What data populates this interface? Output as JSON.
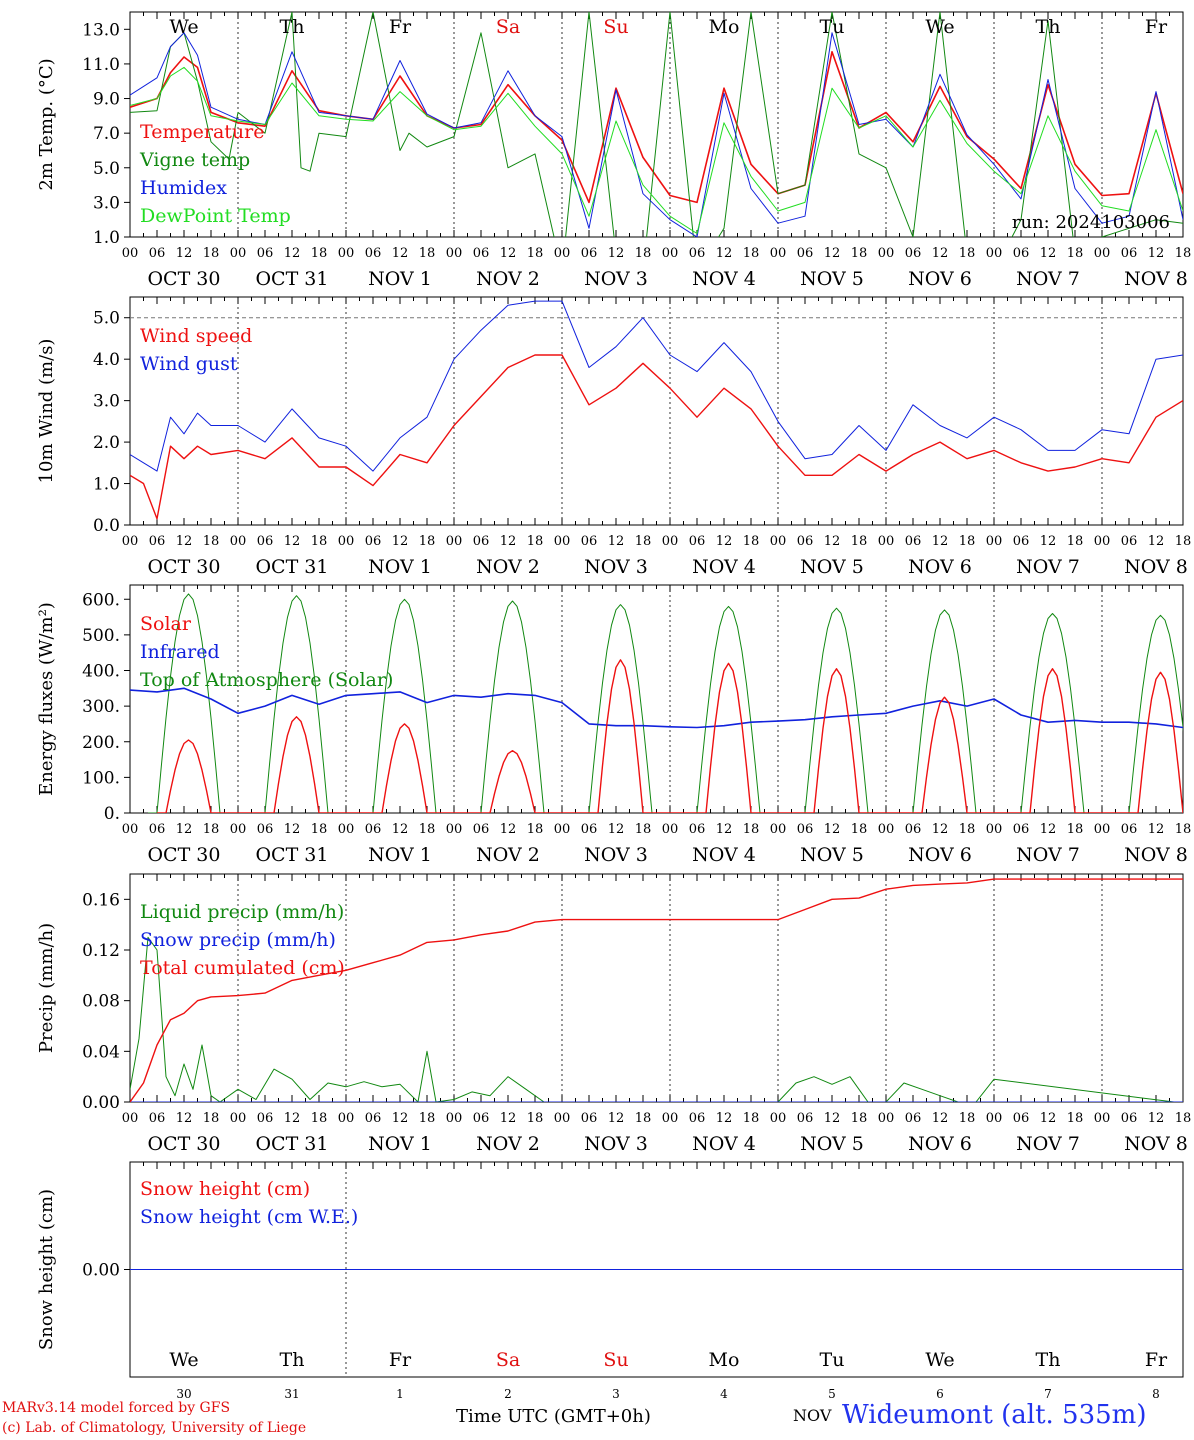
{
  "days": [
    "We",
    "Th",
    "Fr",
    "Sa",
    "Su",
    "Mo",
    "Tu",
    "We",
    "Th",
    "Fr"
  ],
  "day_colors": [
    "#000000",
    "#000000",
    "#000000",
    "#e01010",
    "#e01010",
    "#000000",
    "#000000",
    "#000000",
    "#000000",
    "#000000"
  ],
  "date_labels": [
    "OCT 30",
    "OCT 31",
    "NOV  1",
    "NOV  2",
    "NOV  3",
    "NOV  4",
    "NOV  5",
    "NOV  6",
    "NOV  7",
    "NOV  8"
  ],
  "hour_ticks": [
    "00",
    "06",
    "12",
    "18"
  ],
  "bottom_dates": [
    "30",
    "31",
    "1",
    "2",
    "3",
    "4",
    "5",
    "6",
    "7",
    "8"
  ],
  "run_label": "run: 2024103006",
  "footer": {
    "model": "MARv3.14 model forced by GFS",
    "lab": "(c) Lab. of Climatology, University of Liege",
    "time_axis": "Time UTC (GMT+0h)",
    "month": "NOV",
    "station": "Wideumont (alt. 535m)"
  },
  "chart_data": [
    {
      "type": "line",
      "ylabel": "2m Temp. (°C)",
      "ylim": [
        1.0,
        14.0
      ],
      "yticks": [
        "1.0",
        "3.0",
        "5.0",
        "7.0",
        "9.0",
        "11.0",
        "13.0"
      ],
      "ytick_values": [
        1,
        3,
        5,
        7,
        9,
        11,
        13
      ],
      "x_unit": "hours since OCT 30 00 UTC",
      "grid": "dashed vertical at day boundaries",
      "series": [
        {
          "name": "Temperature",
          "color": "#ee1111",
          "width": 1.6,
          "x": [
            0,
            6,
            9,
            12,
            15,
            18,
            24,
            30,
            36,
            42,
            48,
            54,
            60,
            66,
            72,
            78,
            84,
            90,
            96,
            102,
            108,
            114,
            120,
            126,
            132,
            138,
            144,
            150,
            156,
            162,
            168,
            174,
            180,
            186,
            192,
            198,
            204,
            210,
            216,
            222,
            228,
            234
          ],
          "y": [
            8.5,
            9.0,
            10.5,
            11.4,
            10.8,
            8.2,
            7.6,
            7.4,
            10.6,
            8.3,
            8.0,
            7.8,
            10.3,
            8.0,
            7.3,
            7.5,
            9.8,
            8.0,
            6.6,
            3.0,
            9.6,
            5.6,
            3.4,
            3.0,
            9.6,
            5.2,
            3.5,
            4.0,
            11.7,
            7.3,
            8.2,
            6.5,
            9.7,
            6.8,
            5.5,
            3.8,
            9.8,
            5.2,
            3.4,
            3.5,
            9.3,
            3.5
          ]
        },
        {
          "name": "Vigne temp",
          "color": "#118811",
          "width": 1,
          "x": [
            0,
            6,
            9,
            12,
            15,
            18,
            22,
            24,
            30,
            36,
            38,
            40,
            42,
            48,
            54,
            60,
            62,
            66,
            72,
            78,
            84,
            90,
            96,
            102,
            108,
            114,
            120,
            126,
            132,
            138,
            144,
            150,
            156,
            162,
            168,
            174,
            180,
            186,
            192,
            198,
            204,
            210,
            216,
            222,
            228,
            234
          ],
          "y": [
            8.2,
            8.3,
            12.0,
            12.8,
            10.0,
            6.5,
            5.5,
            8.2,
            7.0,
            14.0,
            5.0,
            4.8,
            7.0,
            6.8,
            14.0,
            6.0,
            7.0,
            6.2,
            6.8,
            12.8,
            5.0,
            5.8,
            -1.0,
            14.0,
            0.0,
            -1.0,
            14.0,
            -1.0,
            1.5,
            14.0,
            3.5,
            4.0,
            14.0,
            5.8,
            5.0,
            1.0,
            14.0,
            0.0,
            -1.0,
            2.0,
            13.5,
            0.0,
            1.0,
            1.5,
            2.0,
            1.8
          ]
        },
        {
          "name": "Humidex",
          "color": "#1122dd",
          "width": 1,
          "x": [
            0,
            6,
            9,
            12,
            15,
            18,
            24,
            30,
            36,
            42,
            48,
            54,
            60,
            66,
            72,
            78,
            84,
            90,
            96,
            102,
            108,
            114,
            120,
            126,
            132,
            138,
            144,
            150,
            156,
            162,
            168,
            174,
            180,
            186,
            192,
            198,
            204,
            210,
            216,
            222,
            228,
            234
          ],
          "y": [
            9.2,
            10.2,
            12.0,
            12.8,
            11.5,
            8.5,
            7.8,
            7.5,
            11.7,
            8.2,
            8.0,
            7.8,
            11.2,
            8.1,
            7.3,
            7.6,
            10.6,
            8.0,
            6.8,
            1.5,
            9.5,
            3.5,
            2.0,
            1.0,
            9.3,
            3.8,
            1.8,
            2.2,
            12.8,
            7.5,
            7.8,
            6.2,
            10.4,
            6.9,
            5.2,
            3.2,
            10.1,
            3.8,
            1.8,
            2.2,
            9.4,
            2.0
          ]
        },
        {
          "name": "DewPoint Temp",
          "color": "#22dd22",
          "width": 1,
          "x": [
            0,
            6,
            9,
            12,
            15,
            18,
            24,
            30,
            36,
            42,
            48,
            54,
            60,
            66,
            72,
            78,
            84,
            90,
            96,
            102,
            108,
            114,
            120,
            126,
            132,
            138,
            144,
            150,
            156,
            162,
            168,
            174,
            180,
            186,
            192,
            198,
            204,
            210,
            216,
            222,
            228,
            234
          ],
          "y": [
            8.6,
            9.0,
            10.3,
            10.8,
            10.0,
            8.0,
            7.7,
            7.5,
            9.9,
            8.0,
            7.8,
            7.7,
            9.4,
            8.0,
            7.2,
            7.4,
            9.3,
            7.4,
            5.8,
            2.2,
            7.7,
            4.0,
            2.2,
            1.2,
            7.6,
            4.5,
            2.5,
            3.0,
            9.6,
            7.3,
            8.0,
            6.2,
            8.9,
            6.4,
            4.8,
            3.5,
            8.0,
            4.8,
            2.8,
            2.5,
            7.2,
            2.5
          ]
        }
      ],
      "legend": [
        "Temperature",
        "Vigne temp",
        "Humidex",
        "DewPoint Temp"
      ]
    },
    {
      "type": "line",
      "ylabel": "10m Wind (m/s)",
      "ylim": [
        0.0,
        5.5
      ],
      "yticks": [
        "0.0",
        "1.0",
        "2.0",
        "3.0",
        "4.0",
        "5.0"
      ],
      "ytick_values": [
        0,
        1,
        2,
        3,
        4,
        5
      ],
      "hline": 5.0,
      "series": [
        {
          "name": "Wind speed",
          "color": "#ee1111",
          "width": 1.4,
          "x": [
            0,
            3,
            6,
            9,
            12,
            15,
            18,
            24,
            30,
            36,
            42,
            48,
            54,
            60,
            66,
            72,
            78,
            84,
            90,
            96,
            102,
            108,
            114,
            120,
            126,
            132,
            138,
            144,
            150,
            156,
            162,
            168,
            174,
            180,
            186,
            192,
            198,
            204,
            210,
            216,
            222,
            228,
            234
          ],
          "y": [
            1.2,
            1.0,
            0.15,
            1.9,
            1.6,
            1.9,
            1.7,
            1.8,
            1.6,
            2.1,
            1.4,
            1.4,
            0.95,
            1.7,
            1.5,
            2.4,
            3.1,
            3.8,
            4.1,
            4.1,
            2.9,
            3.3,
            3.9,
            3.3,
            2.6,
            3.3,
            2.8,
            1.9,
            1.2,
            1.2,
            1.7,
            1.3,
            1.7,
            2.0,
            1.6,
            1.8,
            1.5,
            1.3,
            1.4,
            1.6,
            1.5,
            2.6,
            3.0
          ]
        },
        {
          "name": "Wind gust",
          "color": "#1122dd",
          "width": 1,
          "x": [
            0,
            3,
            6,
            9,
            12,
            15,
            18,
            24,
            30,
            36,
            42,
            48,
            54,
            60,
            66,
            72,
            78,
            84,
            90,
            96,
            102,
            108,
            114,
            120,
            126,
            132,
            138,
            144,
            150,
            156,
            162,
            168,
            174,
            180,
            186,
            192,
            198,
            204,
            210,
            216,
            222,
            228,
            234
          ],
          "y": [
            1.7,
            1.5,
            1.3,
            2.6,
            2.2,
            2.7,
            2.4,
            2.4,
            2.0,
            2.8,
            2.1,
            1.9,
            1.3,
            2.1,
            2.6,
            4.0,
            4.7,
            5.3,
            5.4,
            5.4,
            3.8,
            4.3,
            5.0,
            4.1,
            3.7,
            4.4,
            3.7,
            2.5,
            1.6,
            1.7,
            2.4,
            1.8,
            2.9,
            2.4,
            2.1,
            2.6,
            2.3,
            1.8,
            1.8,
            2.3,
            2.2,
            4.0,
            4.1
          ]
        }
      ],
      "legend": [
        "Wind speed",
        "Wind gust"
      ]
    },
    {
      "type": "line",
      "ylabel": "Energy fluxes (W/m²)",
      "ylim": [
        0,
        640
      ],
      "yticks": [
        "0.",
        "100.",
        "200.",
        "300.",
        "400.",
        "500.",
        "600."
      ],
      "ytick_values": [
        0,
        100,
        200,
        300,
        400,
        500,
        600
      ],
      "daily_peak_hour": 13,
      "solar_peaks": [
        205,
        270,
        250,
        175,
        430,
        420,
        405,
        325,
        405,
        395
      ],
      "toa_peaks": [
        615,
        610,
        600,
        595,
        585,
        580,
        575,
        570,
        560,
        555
      ],
      "infrared": {
        "x": [
          0,
          6,
          12,
          18,
          24,
          30,
          36,
          42,
          48,
          54,
          60,
          66,
          72,
          78,
          84,
          90,
          96,
          102,
          108,
          114,
          120,
          126,
          132,
          138,
          144,
          150,
          156,
          162,
          168,
          174,
          180,
          186,
          192,
          198,
          204,
          210,
          216,
          222,
          228,
          234
        ],
        "y": [
          345,
          340,
          350,
          320,
          280,
          300,
          330,
          305,
          330,
          335,
          340,
          310,
          330,
          325,
          335,
          330,
          310,
          250,
          245,
          245,
          242,
          240,
          245,
          255,
          258,
          262,
          270,
          275,
          280,
          300,
          315,
          300,
          320,
          275,
          255,
          260,
          255,
          255,
          250,
          240
        ]
      },
      "series": [
        {
          "name": "Solar",
          "color": "#ee1111"
        },
        {
          "name": "Infrared",
          "color": "#1122dd"
        },
        {
          "name": "Top of Atmosphere (Solar)",
          "color": "#118811"
        }
      ],
      "legend": [
        "Solar",
        "Infrared",
        "Top of Atmosphere (Solar)"
      ]
    },
    {
      "type": "line",
      "ylabel": "Precip (mm/h)",
      "ylim": [
        0.0,
        0.18
      ],
      "yticks": [
        "0.00",
        "0.04",
        "0.08",
        "0.12",
        "0.16"
      ],
      "ytick_values": [
        0,
        0.04,
        0.08,
        0.12,
        0.16
      ],
      "series": [
        {
          "name": "Liquid precip (mm/h)",
          "color": "#118811",
          "width": 1,
          "x": [
            0,
            2,
            4,
            6,
            8,
            10,
            12,
            14,
            16,
            18,
            20,
            24,
            28,
            32,
            36,
            40,
            44,
            48,
            52,
            56,
            60,
            64,
            66,
            68,
            72,
            76,
            80,
            84,
            88,
            92,
            96,
            120,
            144,
            148,
            152,
            156,
            160,
            164,
            168,
            172,
            176,
            180,
            184,
            188,
            192,
            232,
            234
          ],
          "y": [
            0.01,
            0.05,
            0.13,
            0.12,
            0.02,
            0.005,
            0.03,
            0.01,
            0.045,
            0.005,
            0.0,
            0.01,
            0.002,
            0.026,
            0.018,
            0.002,
            0.015,
            0.012,
            0.016,
            0.012,
            0.014,
            0.0,
            0.04,
            0.0,
            0.002,
            0.008,
            0.005,
            0.02,
            0.01,
            0.0,
            0.0,
            0.0,
            0.0,
            0.015,
            0.02,
            0.014,
            0.02,
            0.0,
            0.0,
            0.015,
            0.01,
            0.005,
            0.0,
            0.0,
            0.018,
            0.0,
            0.0
          ]
        },
        {
          "name": "Snow precip (mm/h)",
          "color": "#1122dd",
          "width": 1,
          "x": [
            0,
            234
          ],
          "y": [
            0.0,
            0.0
          ]
        },
        {
          "name": "Total cumulated (cm)",
          "color": "#ee1111",
          "width": 1.4,
          "x": [
            0,
            3,
            6,
            9,
            12,
            15,
            18,
            24,
            30,
            36,
            42,
            48,
            54,
            60,
            66,
            72,
            78,
            84,
            90,
            96,
            120,
            144,
            150,
            156,
            162,
            168,
            174,
            180,
            186,
            192,
            234
          ],
          "y": [
            0.0,
            0.015,
            0.045,
            0.065,
            0.07,
            0.08,
            0.083,
            0.084,
            0.086,
            0.096,
            0.1,
            0.104,
            0.11,
            0.116,
            0.126,
            0.128,
            0.132,
            0.135,
            0.142,
            0.144,
            0.144,
            0.144,
            0.152,
            0.16,
            0.161,
            0.168,
            0.171,
            0.172,
            0.173,
            0.176,
            0.176
          ]
        }
      ],
      "legend": [
        "Liquid precip (mm/h)",
        "Snow precip (mm/h)",
        "Total cumulated (cm)"
      ]
    },
    {
      "type": "line",
      "ylabel": "Snow height (cm)",
      "ylim": [
        -1,
        1
      ],
      "yticks": [
        "0.00"
      ],
      "ytick_values": [
        0
      ],
      "series": [
        {
          "name": "Snow height (cm)",
          "color": "#ee1111",
          "width": 1,
          "x": [
            0,
            234
          ],
          "y": [
            0.0,
            0.0
          ]
        },
        {
          "name": "Snow height (cm W.E.)",
          "color": "#1122dd",
          "width": 1,
          "x": [
            0,
            234
          ],
          "y": [
            0.0,
            0.0
          ]
        }
      ],
      "legend": [
        "Snow height (cm)",
        "Snow height (cm W.E.)"
      ]
    }
  ]
}
